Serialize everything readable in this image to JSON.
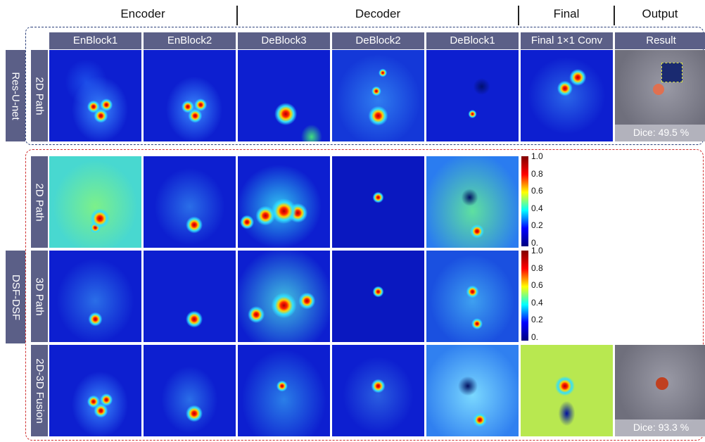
{
  "sections": [
    "Encoder",
    "Decoder",
    "Final",
    "Output"
  ],
  "columns": [
    "EnBlock1",
    "EnBlock2",
    "DeBlock3",
    "DeBlock2",
    "DeBlock1",
    "Final 1×1 Conv",
    "Result"
  ],
  "groups": [
    "Res-U-net",
    "DSF-DSF"
  ],
  "rows": [
    "2D Path",
    "2D Path",
    "3D Path",
    "2D-3D Fusion"
  ],
  "colorbar_ticks": [
    "1.0",
    "0.8",
    "0.6",
    "0.4",
    "0.2",
    "0."
  ],
  "dice": [
    "Dice: 49.5 %",
    "Dice: 93.3 %"
  ]
}
